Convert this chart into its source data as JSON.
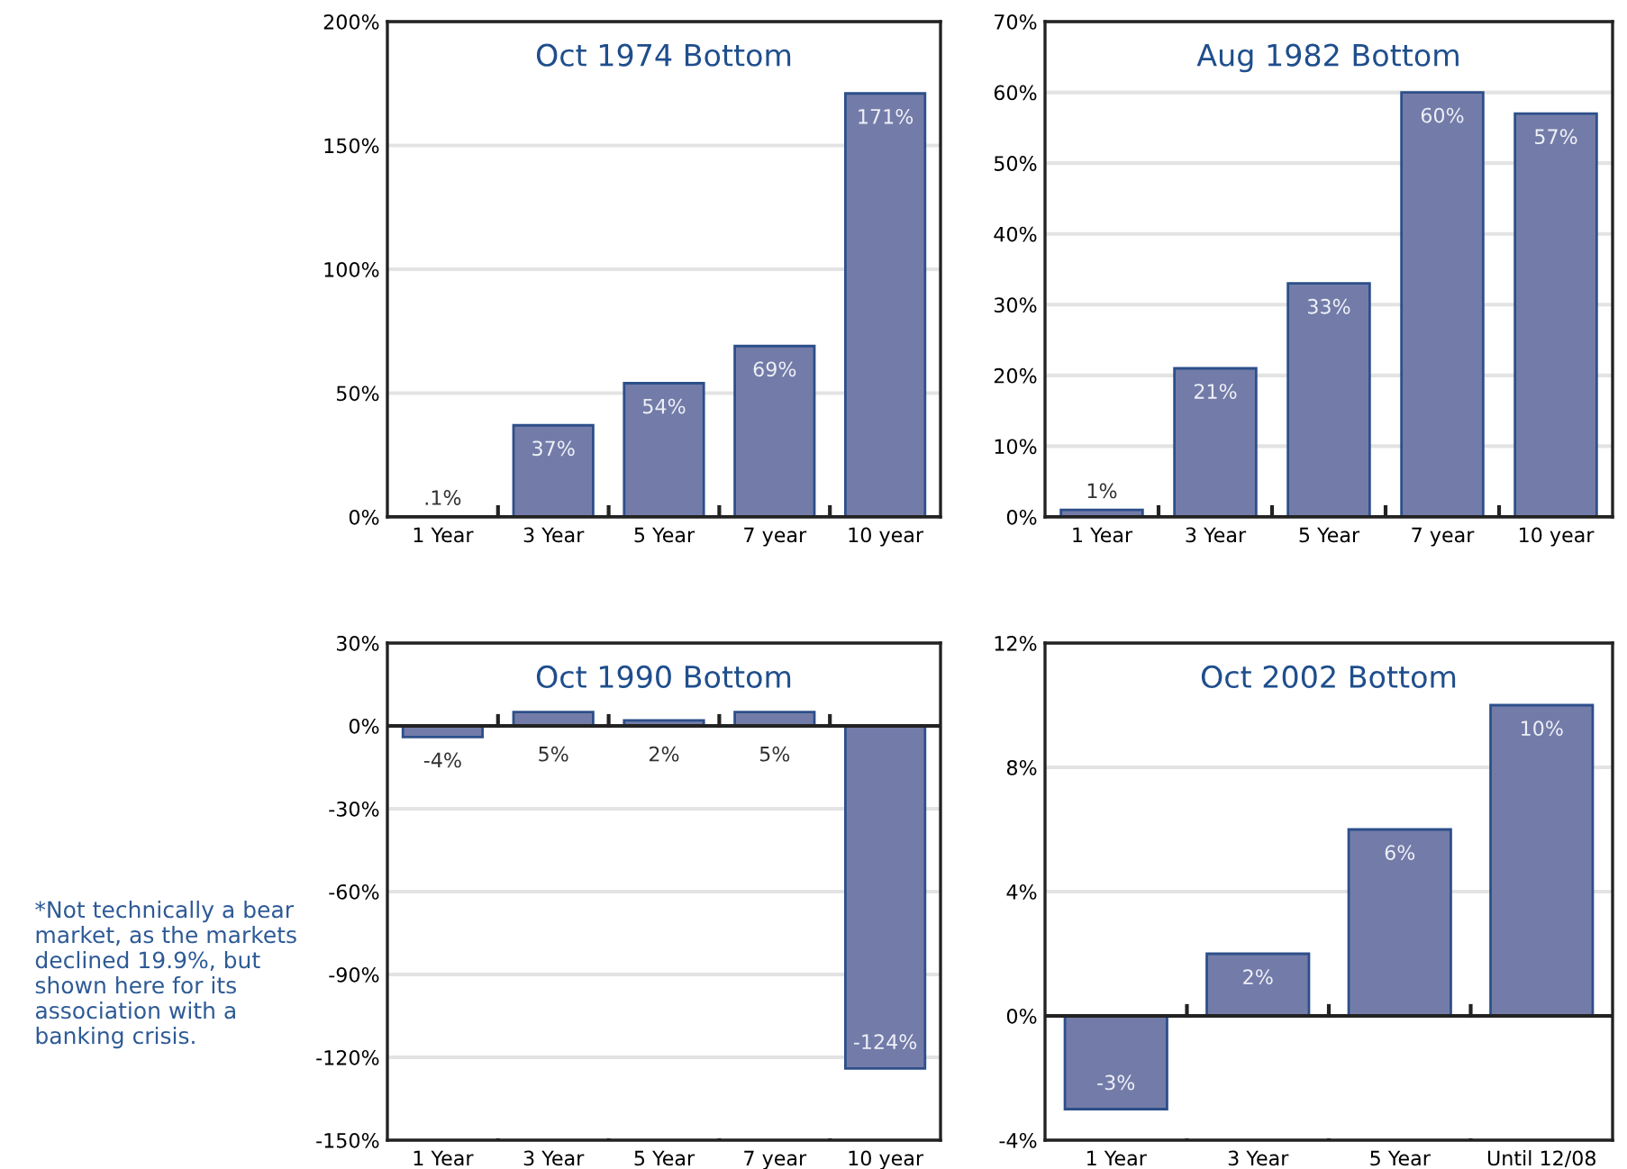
{
  "chart_data": [
    {
      "type": "bar",
      "title": "Oct 1974 Bottom",
      "categories": [
        "1 Year",
        "3 Year",
        "5 Year",
        "7 year",
        "10 year"
      ],
      "values": [
        0.1,
        37,
        54,
        69,
        171
      ],
      "value_labels": [
        ".1%",
        "37%",
        "54%",
        "69%",
        "171%"
      ],
      "color": "#737ca8",
      "ylim": [
        0,
        200
      ],
      "yticks": [
        {
          "value": 0,
          "label": "0%"
        },
        {
          "value": 50,
          "label": "50%"
        },
        {
          "value": 100,
          "label": "100%"
        },
        {
          "value": 150,
          "label": "150%"
        },
        {
          "value": 200,
          "label": "200%"
        }
      ],
      "grid": "y",
      "legend": false
    },
    {
      "type": "bar",
      "title": "Aug 1982 Bottom",
      "categories": [
        "1 Year",
        "3 Year",
        "5 Year",
        "7 year",
        "10 year"
      ],
      "values": [
        1,
        21,
        33,
        60,
        57
      ],
      "value_labels": [
        "1%",
        "21%",
        "33%",
        "60%",
        "57%"
      ],
      "color": "#737ca8",
      "ylim": [
        0,
        70
      ],
      "yticks": [
        {
          "value": 0,
          "label": "0%"
        },
        {
          "value": 10,
          "label": "10%"
        },
        {
          "value": 20,
          "label": "20%"
        },
        {
          "value": 30,
          "label": "30%"
        },
        {
          "value": 40,
          "label": "40%"
        },
        {
          "value": 50,
          "label": "50%"
        },
        {
          "value": 60,
          "label": "60%"
        },
        {
          "value": 70,
          "label": "70%"
        }
      ],
      "grid": "y",
      "legend": false
    },
    {
      "type": "bar",
      "title": "Oct 1990 Bottom",
      "categories": [
        "1 Year",
        "3 Year",
        "5 Year",
        "7 year",
        "10 year"
      ],
      "values": [
        -4,
        5,
        2,
        5,
        -124
      ],
      "value_labels": [
        "-4%",
        "5%",
        "2%",
        "5%",
        "-124%"
      ],
      "color": "#737ca8",
      "ylim": [
        -150,
        30
      ],
      "yticks": [
        {
          "value": -150,
          "label": "-150%"
        },
        {
          "value": -120,
          "label": "-120%"
        },
        {
          "value": -90,
          "label": "-90%"
        },
        {
          "value": -60,
          "label": "-60%"
        },
        {
          "value": -30,
          "label": "-30%"
        },
        {
          "value": 0,
          "label": "0%"
        },
        {
          "value": 30,
          "label": "30%"
        }
      ],
      "grid": "y",
      "legend": false,
      "annotations": [
        "*Not technically a bear market, as the markets declined 19.9%, but shown here for its association with a banking crisis."
      ]
    },
    {
      "type": "bar",
      "title": "Oct 2002 Bottom",
      "categories": [
        "1 Year",
        "3 Year",
        "5 Year",
        "Until 12/08"
      ],
      "values": [
        -3,
        2,
        6,
        10
      ],
      "value_labels": [
        "-3%",
        "2%",
        "6%",
        "10%"
      ],
      "color": "#737ca8",
      "ylim": [
        -4,
        12
      ],
      "yticks": [
        {
          "value": -4,
          "label": "-4%"
        },
        {
          "value": 0,
          "label": "0%"
        },
        {
          "value": 4,
          "label": "4%"
        },
        {
          "value": 8,
          "label": "8%"
        },
        {
          "value": 12,
          "label": "12%"
        }
      ],
      "grid": "y",
      "legend": false
    }
  ]
}
